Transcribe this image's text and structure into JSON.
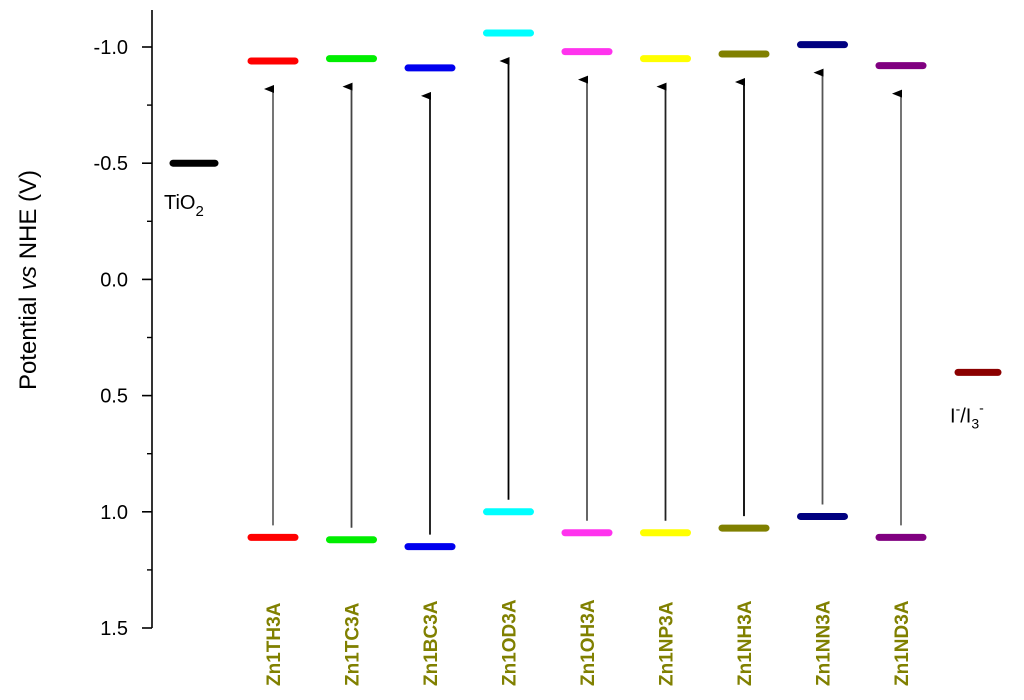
{
  "chart_data": {
    "type": "energy-level",
    "title": "",
    "xlabel": "",
    "ylabel": {
      "prefix": "Potential ",
      "italic": "vs",
      "suffix": " NHE (V)"
    },
    "ylim": [
      1.5,
      -1.15
    ],
    "y_inverted": true,
    "yticks": [
      {
        "value": -1.0,
        "label": "-1.0"
      },
      {
        "value": -0.5,
        "label": "-0.5"
      },
      {
        "value": 0.0,
        "label": "0.0"
      },
      {
        "value": 0.5,
        "label": "0.5"
      },
      {
        "value": 1.0,
        "label": "1.0"
      },
      {
        "value": 1.5,
        "label": "1.5"
      }
    ],
    "categories": [
      "Zn1TH3A",
      "Zn1TC3A",
      "Zn1BC3A",
      "Zn1OD3A",
      "Zn1OH3A",
      "Zn1NP3A",
      "Zn1NH3A",
      "Zn1NN3A",
      "Zn1ND3A"
    ],
    "series": [
      {
        "category": "Zn1TH3A",
        "lumo": -0.94,
        "homo": 1.11,
        "color": "#ff0000",
        "arrow_color": "#666666"
      },
      {
        "category": "Zn1TC3A",
        "lumo": -0.95,
        "homo": 1.12,
        "color": "#00ee00",
        "arrow_color": "#444444"
      },
      {
        "category": "Zn1BC3A",
        "lumo": -0.91,
        "homo": 1.15,
        "color": "#0000ee",
        "arrow_color": "#111111"
      },
      {
        "category": "Zn1OD3A",
        "lumo": -1.06,
        "homo": 1.0,
        "color": "#00ffff",
        "arrow_color": "#000000"
      },
      {
        "category": "Zn1OH3A",
        "lumo": -0.98,
        "homo": 1.09,
        "color": "#ff33ee",
        "arrow_color": "#555555"
      },
      {
        "category": "Zn1NP3A",
        "lumo": -0.95,
        "homo": 1.09,
        "color": "#ffff00",
        "arrow_color": "#222222"
      },
      {
        "category": "Zn1NH3A",
        "lumo": -0.97,
        "homo": 1.07,
        "color": "#808000",
        "arrow_color": "#000000"
      },
      {
        "category": "Zn1NN3A",
        "lumo": -1.01,
        "homo": 1.02,
        "color": "#000080",
        "arrow_color": "#555555"
      },
      {
        "category": "Zn1ND3A",
        "lumo": -0.92,
        "homo": 1.11,
        "color": "#800080",
        "arrow_color": "#666666"
      }
    ],
    "references": [
      {
        "name": "TiO2",
        "label_main": "TiO",
        "label_sub": "2",
        "value": -0.5,
        "color": "#000000",
        "side": "left"
      },
      {
        "name": "I-/I3-",
        "value": 0.4,
        "color": "#8b0000",
        "side": "right"
      }
    ]
  }
}
